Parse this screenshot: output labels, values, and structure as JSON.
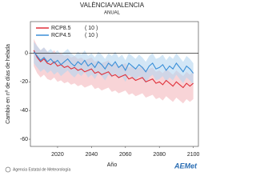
{
  "chart_data": {
    "type": "line",
    "title": "VALÈNCIA/VALENCIA",
    "subtitle": "ANUAL",
    "y_label": "Cambio en nº de días de helada",
    "x_label": "Año",
    "footer": "Agencia Estatal de Meteorología",
    "logo": "AEMet",
    "xlim": [
      2004,
      2103
    ],
    "ylim": [
      -65,
      22
    ],
    "xticks": [
      2020,
      2040,
      2060,
      2080,
      2100
    ],
    "yticks": [
      0,
      -20,
      -40,
      -60
    ],
    "x": [
      2006,
      2008,
      2010,
      2012,
      2014,
      2016,
      2018,
      2020,
      2022,
      2024,
      2026,
      2028,
      2030,
      2032,
      2034,
      2036,
      2038,
      2040,
      2042,
      2044,
      2046,
      2048,
      2050,
      2052,
      2054,
      2056,
      2058,
      2060,
      2062,
      2064,
      2066,
      2068,
      2070,
      2072,
      2074,
      2076,
      2078,
      2080,
      2082,
      2084,
      2086,
      2088,
      2090,
      2092,
      2094,
      2096,
      2098,
      2100
    ],
    "series": [
      {
        "name": "RCP8.5",
        "count_label": "( 10 )",
        "color": "#e0303a",
        "band_color": "#f4b8bd",
        "values": [
          2,
          -3,
          -6,
          -4,
          -7,
          -8,
          -6,
          -9,
          -8,
          -10,
          -9,
          -11,
          -10,
          -12,
          -11,
          -13,
          -12,
          -11,
          -14,
          -13,
          -15,
          -14,
          -13,
          -16,
          -15,
          -17,
          -16,
          -15,
          -18,
          -17,
          -19,
          -18,
          -17,
          -20,
          -19,
          -18,
          -21,
          -20,
          -22,
          -19,
          -21,
          -23,
          -20,
          -22,
          -24,
          -21,
          -23,
          -21
        ],
        "upper": [
          10,
          5,
          2,
          4,
          1,
          0,
          2,
          -1,
          0,
          -2,
          -1,
          -3,
          -2,
          -4,
          -3,
          -5,
          -4,
          -3,
          -6,
          -5,
          -7,
          -6,
          -5,
          -8,
          -7,
          -9,
          -8,
          -7,
          -10,
          -9,
          -11,
          -10,
          -9,
          -12,
          -11,
          -10,
          -13,
          -12,
          -14,
          -11,
          -13,
          -15,
          -12,
          -14,
          -16,
          -13,
          -15,
          -13
        ],
        "lower": [
          -9,
          -14,
          -17,
          -15,
          -18,
          -19,
          -17,
          -20,
          -19,
          -21,
          -20,
          -22,
          -21,
          -23,
          -22,
          -24,
          -23,
          -22,
          -25,
          -24,
          -26,
          -25,
          -24,
          -27,
          -26,
          -28,
          -27,
          -26,
          -29,
          -28,
          -30,
          -29,
          -28,
          -31,
          -30,
          -29,
          -32,
          -31,
          -33,
          -30,
          -32,
          -34,
          -31,
          -33,
          -35,
          -32,
          -34,
          -32
        ]
      },
      {
        "name": "RCP4.5",
        "count_label": "( 10 )",
        "color": "#3a8fd8",
        "band_color": "#b4d6f0",
        "values": [
          1,
          -2,
          -5,
          -3,
          -6,
          -4,
          -7,
          -5,
          -8,
          -6,
          -4,
          -7,
          -9,
          -6,
          -8,
          -5,
          -9,
          -7,
          -10,
          -6,
          -8,
          -11,
          -7,
          -9,
          -6,
          -10,
          -8,
          -12,
          -7,
          -9,
          -11,
          -8,
          -10,
          -13,
          -9,
          -7,
          -11,
          -10,
          -8,
          -12,
          -9,
          -11,
          -7,
          -10,
          -13,
          -9,
          -11,
          -14
        ],
        "upper": [
          8,
          5,
          2,
          4,
          1,
          3,
          0,
          2,
          -1,
          1,
          3,
          0,
          -2,
          1,
          -1,
          2,
          -2,
          0,
          -3,
          1,
          -1,
          -4,
          0,
          -2,
          1,
          -3,
          -1,
          -5,
          0,
          -2,
          -4,
          -1,
          -3,
          -6,
          -2,
          0,
          -4,
          -3,
          -1,
          -5,
          -2,
          -4,
          0,
          -3,
          -6,
          -2,
          -4,
          -7
        ],
        "lower": [
          -7,
          -10,
          -13,
          -11,
          -14,
          -12,
          -15,
          -13,
          -16,
          -14,
          -12,
          -15,
          -17,
          -14,
          -16,
          -13,
          -17,
          -15,
          -18,
          -14,
          -16,
          -19,
          -15,
          -17,
          -14,
          -18,
          -16,
          -20,
          -15,
          -17,
          -19,
          -16,
          -18,
          -21,
          -17,
          -15,
          -19,
          -18,
          -16,
          -20,
          -17,
          -19,
          -15,
          -18,
          -21,
          -17,
          -19,
          -22
        ]
      }
    ]
  }
}
